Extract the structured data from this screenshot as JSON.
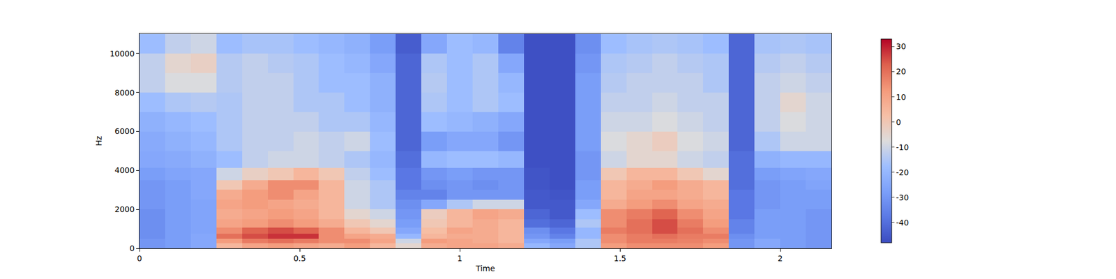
{
  "chart_data": {
    "type": "heatmap",
    "xlabel": "Time",
    "ylabel": "Hz",
    "x": [
      0.04,
      0.12,
      0.2,
      0.28,
      0.36,
      0.44,
      0.52,
      0.6,
      0.68,
      0.76,
      0.84,
      0.92,
      1.0,
      1.08,
      1.16,
      1.24,
      1.32,
      1.4,
      1.48,
      1.56,
      1.64,
      1.72,
      1.8,
      1.88,
      1.96,
      2.04,
      2.12
    ],
    "y": [
      125,
      375,
      625,
      875,
      1250,
      1750,
      2250,
      2750,
      3250,
      3750,
      4500,
      5500,
      6500,
      7500,
      8500,
      9500,
      10500
    ],
    "cells": [
      [
        -30,
        -28,
        -25,
        5,
        10,
        12,
        10,
        8,
        12,
        5,
        -5,
        8,
        10,
        10,
        8,
        -20,
        -25,
        -15,
        12,
        15,
        15,
        15,
        12,
        -30,
        -25,
        -28,
        -30
      ],
      [
        -30,
        -28,
        -25,
        12,
        18,
        20,
        18,
        15,
        15,
        10,
        -10,
        12,
        10,
        8,
        5,
        -25,
        -28,
        -15,
        15,
        18,
        18,
        17,
        15,
        -30,
        -25,
        -28,
        -30
      ],
      [
        -32,
        -28,
        -25,
        20,
        25,
        28,
        28,
        15,
        10,
        8,
        -20,
        5,
        8,
        8,
        5,
        -30,
        -35,
        -20,
        15,
        18,
        20,
        18,
        18,
        -32,
        -28,
        -28,
        -30
      ],
      [
        -32,
        -28,
        -26,
        15,
        22,
        25,
        22,
        15,
        5,
        0,
        -25,
        3,
        10,
        8,
        5,
        -32,
        -38,
        -20,
        18,
        20,
        25,
        20,
        15,
        -35,
        -28,
        -28,
        -30
      ],
      [
        -32,
        -28,
        -26,
        10,
        12,
        15,
        12,
        8,
        0,
        -5,
        -28,
        0,
        5,
        8,
        5,
        -40,
        -42,
        -15,
        15,
        20,
        25,
        18,
        12,
        -35,
        -28,
        -28,
        -30
      ],
      [
        -32,
        -28,
        -26,
        8,
        10,
        12,
        10,
        5,
        -5,
        -10,
        -30,
        -2,
        5,
        10,
        8,
        -42,
        -45,
        -18,
        15,
        18,
        22,
        15,
        10,
        -38,
        -28,
        -28,
        -30
      ],
      [
        -30,
        -28,
        -26,
        10,
        12,
        10,
        8,
        5,
        -10,
        -15,
        -32,
        -25,
        -15,
        -10,
        -10,
        -45,
        -45,
        -25,
        8,
        12,
        15,
        10,
        8,
        -38,
        -30,
        -28,
        -28
      ],
      [
        -30,
        -28,
        -25,
        8,
        12,
        15,
        10,
        5,
        -10,
        -15,
        -35,
        -35,
        -30,
        -30,
        -30,
        -45,
        -46,
        -28,
        5,
        10,
        10,
        8,
        5,
        -38,
        -30,
        -28,
        -28
      ],
      [
        -30,
        -28,
        -25,
        0,
        8,
        15,
        15,
        5,
        -10,
        -15,
        -38,
        -32,
        -30,
        -32,
        -30,
        -46,
        -47,
        -28,
        5,
        8,
        12,
        8,
        5,
        -40,
        -30,
        -28,
        -26
      ],
      [
        -28,
        -26,
        -25,
        -10,
        -3,
        0,
        5,
        0,
        -12,
        -18,
        -38,
        -30,
        -28,
        -30,
        -30,
        -46,
        -47,
        -30,
        0,
        5,
        5,
        0,
        -5,
        -40,
        -28,
        -26,
        -25
      ],
      [
        -25,
        -24,
        -22,
        -18,
        -12,
        -10,
        -10,
        -12,
        -15,
        -20,
        -40,
        -20,
        -18,
        -18,
        -20,
        -47,
        -47,
        -30,
        -10,
        -5,
        -5,
        -10,
        -12,
        -40,
        -22,
        -20,
        -20
      ],
      [
        -24,
        -22,
        -20,
        -15,
        -12,
        -12,
        -10,
        -12,
        -10,
        -18,
        -42,
        -28,
        -25,
        -25,
        -30,
        -47,
        -47,
        -28,
        -8,
        -5,
        -2,
        -8,
        -10,
        -42,
        -15,
        -10,
        -10
      ],
      [
        -22,
        -20,
        -18,
        -15,
        -12,
        -12,
        -12,
        -15,
        -15,
        -20,
        -42,
        -18,
        -20,
        -22,
        -25,
        -47,
        -47,
        -28,
        -10,
        -10,
        -8,
        -10,
        -12,
        -42,
        -12,
        -8,
        -10
      ],
      [
        -18,
        -15,
        -14,
        -15,
        -12,
        -12,
        -15,
        -15,
        -18,
        -22,
        -42,
        -15,
        -18,
        -15,
        -18,
        -47,
        -47,
        -28,
        -12,
        -12,
        -10,
        -12,
        -12,
        -42,
        -12,
        -5,
        -10
      ],
      [
        -12,
        -8,
        -8,
        -14,
        -12,
        -12,
        -15,
        -18,
        -18,
        -22,
        -42,
        -14,
        -18,
        -15,
        -20,
        -47,
        -47,
        -28,
        -14,
        -12,
        -12,
        -12,
        -15,
        -42,
        -12,
        -10,
        -12
      ],
      [
        -12,
        -5,
        -3,
        -14,
        -12,
        -14,
        -15,
        -18,
        -20,
        -25,
        -42,
        -15,
        -18,
        -15,
        -25,
        -47,
        -47,
        -30,
        -15,
        -14,
        -12,
        -14,
        -15,
        -42,
        -14,
        -12,
        -14
      ],
      [
        -18,
        -12,
        -10,
        -18,
        -16,
        -16,
        -18,
        -20,
        -22,
        -28,
        -44,
        -25,
        -18,
        -20,
        -35,
        -47,
        -47,
        -32,
        -18,
        -16,
        -15,
        -16,
        -18,
        -42,
        -16,
        -15,
        -16
      ]
    ],
    "xlim": [
      0,
      2.16
    ],
    "ylim": [
      0,
      11025
    ],
    "xticks": [
      0,
      0.5,
      1,
      1.5,
      2
    ],
    "yticks": [
      0,
      2000,
      4000,
      6000,
      8000,
      10000
    ],
    "colorbar_range": [
      -48,
      33
    ],
    "colorbar_ticks": [
      -40,
      -30,
      -20,
      -10,
      0,
      10,
      20,
      30
    ],
    "grid": false
  }
}
